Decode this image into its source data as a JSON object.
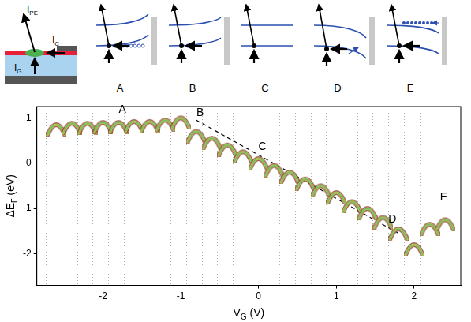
{
  "diagrams": {
    "inset_labels": [
      {
        "text": "I",
        "subscript": "PE"
      },
      {
        "text": "I",
        "subscript": "C"
      },
      {
        "text": "I",
        "subscript": "G"
      }
    ],
    "panel_labels": [
      "A",
      "B",
      "C",
      "D",
      "E"
    ]
  },
  "chart_data": {
    "type": "scatter",
    "x_label": {
      "text": "V",
      "subscript": "G",
      "suffix": " (V)"
    },
    "y_label": {
      "text": "ΔE",
      "subscript": "Γ",
      "suffix": " (eV)"
    },
    "xlim": [
      -2.85,
      2.6
    ],
    "xticks": [
      -2,
      -1,
      0,
      1,
      2
    ],
    "ylim": [
      -2.7,
      1.25
    ],
    "yticks": [
      -2,
      -1,
      0,
      1
    ],
    "grid": false,
    "series": [
      {
        "type": "scatter",
        "marker": "arc",
        "color": "#8c4a3c",
        "x": [
          -2.6,
          -2.4,
          -2.2,
          -2.0,
          -1.8,
          -1.6,
          -1.4,
          -1.2,
          -1.0,
          -0.8,
          -0.6,
          -0.4,
          -0.2,
          0.0,
          0.2,
          0.4,
          0.6,
          0.8,
          1.0,
          1.2,
          1.4,
          1.6,
          1.8,
          2.0,
          2.2,
          2.4
        ],
        "values": [
          0.85,
          0.88,
          0.88,
          0.9,
          0.9,
          0.92,
          0.92,
          0.95,
          1.0,
          0.7,
          0.55,
          0.4,
          0.25,
          0.1,
          -0.05,
          -0.2,
          -0.35,
          -0.5,
          -0.65,
          -0.85,
          -1.0,
          -1.2,
          -1.45,
          -1.8,
          -1.35,
          -1.25
        ]
      },
      {
        "type": "line",
        "line_style": "dashed",
        "color": "#000000",
        "x": [
          -0.8,
          1.8
        ],
        "values": [
          0.95,
          -1.55
        ]
      }
    ],
    "annotations": [
      {
        "text": "A",
        "x": -1.75,
        "y": 1.17
      },
      {
        "text": "B",
        "x": -0.75,
        "y": 1.1
      },
      {
        "text": "C",
        "x": 0.05,
        "y": 0.35
      },
      {
        "text": "D",
        "x": 1.72,
        "y": -1.25
      },
      {
        "text": "E",
        "x": 2.38,
        "y": -0.75
      }
    ]
  }
}
